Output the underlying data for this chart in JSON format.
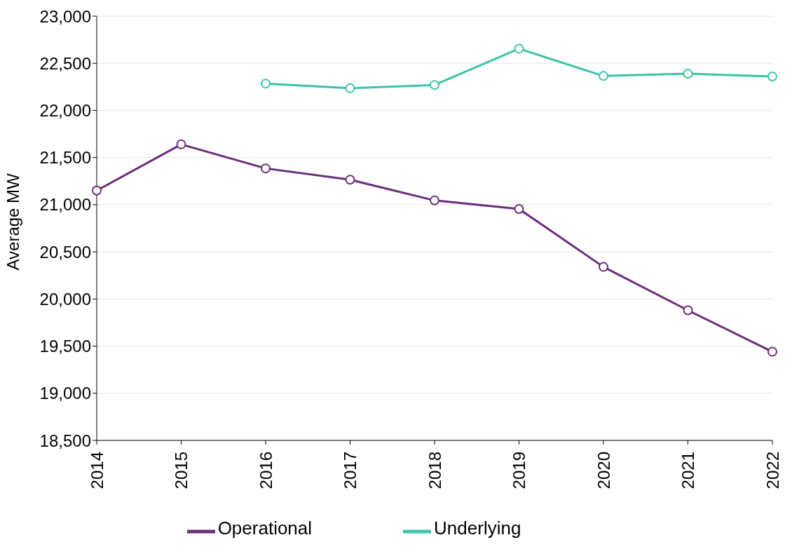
{
  "chart_data": {
    "type": "line",
    "ylabel": "Average MW",
    "categories": [
      "2014",
      "2015",
      "2016",
      "2017",
      "2018",
      "2019",
      "2020",
      "2021",
      "2022"
    ],
    "series": [
      {
        "name": "Operational",
        "color": "#6b2d7b",
        "values": [
          21150,
          21640,
          21385,
          21265,
          21045,
          20955,
          20340,
          19880,
          19440
        ]
      },
      {
        "name": "Underlying",
        "color": "#3cc3a9",
        "values": [
          null,
          null,
          22285,
          22235,
          22270,
          22655,
          22365,
          22390,
          22360
        ]
      }
    ],
    "ylim": [
      18500,
      23000
    ],
    "yticks": [
      {
        "value": 18500,
        "label": "18,500"
      },
      {
        "value": 19000,
        "label": "19,000"
      },
      {
        "value": 19500,
        "label": "19,500"
      },
      {
        "value": 20000,
        "label": "20,000"
      },
      {
        "value": 20500,
        "label": "20,500"
      },
      {
        "value": 21000,
        "label": "21,000"
      },
      {
        "value": 21500,
        "label": "21,500"
      },
      {
        "value": 22000,
        "label": "22,000"
      },
      {
        "value": 22500,
        "label": "22,500"
      },
      {
        "value": 23000,
        "label": "23,000"
      }
    ],
    "grid": "y",
    "legend": "bottom",
    "marker": "circle",
    "line_style": "solid"
  }
}
